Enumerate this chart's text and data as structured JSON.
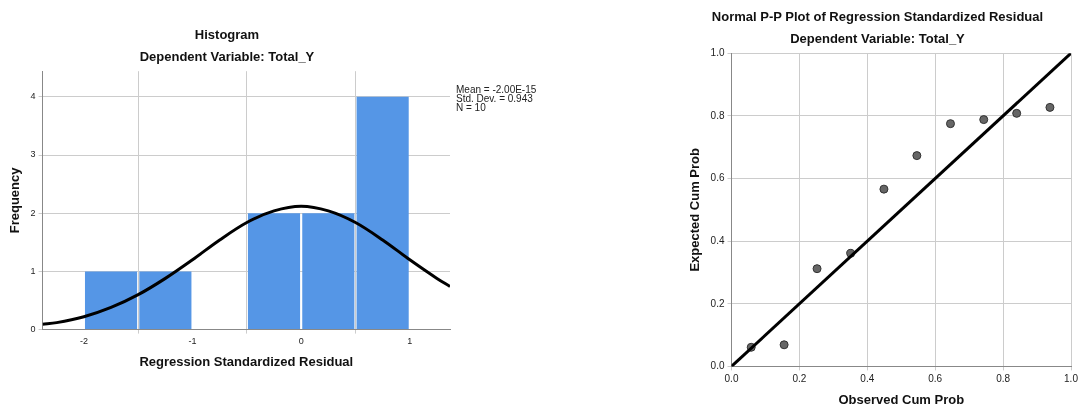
{
  "chart_data": [
    {
      "type": "histogram",
      "title": "Histogram",
      "subtitle": "Dependent Variable: Total_Y",
      "xlabel": "Regression Standardized Residual",
      "ylabel": "Frequency",
      "bins": [
        -2,
        -1.5,
        -1,
        -0.5,
        0,
        0.5,
        1
      ],
      "values": [
        1,
        1,
        0,
        2,
        2,
        4
      ],
      "color": "#5596e6",
      "series": [
        {
          "type": "line",
          "color": "#000000",
          "x": [
            -2.38,
            -2.25,
            -2,
            -1.75,
            -1.5,
            -1.25,
            -1,
            -0.75,
            -0.5,
            -0.25,
            0,
            0.25,
            0.5,
            0.75,
            1,
            1.25,
            1.37
          ],
          "values": [
            0.09,
            0.12,
            0.22,
            0.38,
            0.6,
            0.88,
            1.2,
            1.54,
            1.84,
            2.04,
            2.12,
            2.04,
            1.84,
            1.54,
            1.2,
            0.88,
            0.74
          ]
        }
      ],
      "xlim": [
        -2.38,
        1.37
      ],
      "xticks": [
        -2,
        -1,
        0,
        1
      ],
      "ylim": [
        0,
        4.44
      ],
      "yticks": [
        0,
        1,
        2,
        3,
        4
      ],
      "grid": true,
      "annotations": [
        "Mean = -2.00E-15",
        "Std. Dev. = 0.943",
        "N = 10"
      ]
    },
    {
      "type": "scatter",
      "title": "Normal P-P Plot of Regression Standardized Residual",
      "subtitle": "Dependent Variable: Total_Y",
      "xlabel": "Observed Cum Prob",
      "ylabel": "Expected Cum Prob",
      "series": [
        {
          "type": "scatter",
          "color": "#666666",
          "marker": "circle",
          "x": [
            0.058,
            0.155,
            0.252,
            0.351,
            0.449,
            0.546,
            0.645,
            0.743,
            0.84,
            0.938
          ],
          "values": [
            0.061,
            0.069,
            0.312,
            0.361,
            0.566,
            0.673,
            0.775,
            0.788,
            0.808,
            0.827
          ]
        },
        {
          "type": "line",
          "color": "#000000",
          "x": [
            0,
            1
          ],
          "values": [
            0,
            1
          ]
        }
      ],
      "xlim": [
        0,
        1
      ],
      "xticks": [
        {
          "value": 0,
          "label": "0.0"
        },
        {
          "value": 0.2,
          "label": "0.2"
        },
        {
          "value": 0.4,
          "label": "0.4"
        },
        {
          "value": 0.6,
          "label": "0.6"
        },
        {
          "value": 0.8,
          "label": "0.8"
        },
        {
          "value": 1,
          "label": "1.0"
        }
      ],
      "ylim": [
        0,
        1
      ],
      "yticks": [
        {
          "value": 0,
          "label": "0.0"
        },
        {
          "value": 0.2,
          "label": "0.2"
        },
        {
          "value": 0.4,
          "label": "0.4"
        },
        {
          "value": 0.6,
          "label": "0.6"
        },
        {
          "value": 0.8,
          "label": "0.8"
        },
        {
          "value": 1,
          "label": "1.0"
        }
      ],
      "grid": true
    }
  ]
}
